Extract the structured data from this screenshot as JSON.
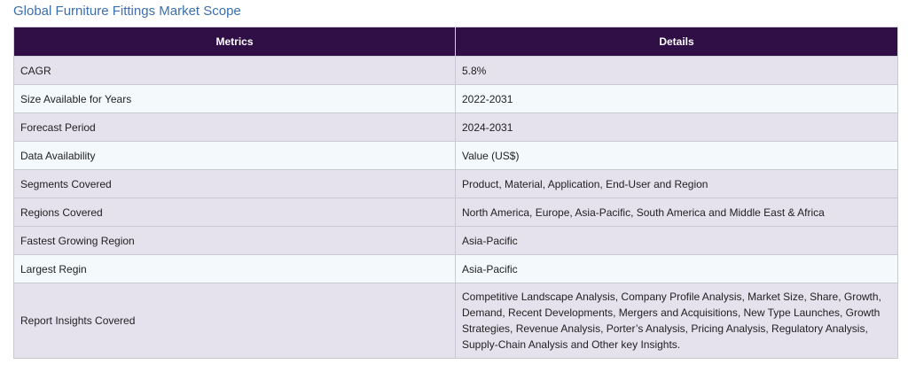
{
  "title": "Global Furniture Fittings Market Scope",
  "table": {
    "headers": [
      "Metrics",
      "Details"
    ],
    "rows": [
      {
        "metric": "CAGR",
        "detail": "5.8%"
      },
      {
        "metric": "Size Available for Years",
        "detail": "2022-2031"
      },
      {
        "metric": "Forecast Period",
        "detail": "2024-2031"
      },
      {
        "metric": "Data Availability",
        "detail": "Value (US$)"
      },
      {
        "metric": "Segments Covered",
        "detail": "Product, Material, Application, End-User and Region"
      },
      {
        "metric": "Regions Covered",
        "detail": "North America, Europe, Asia-Pacific, South America and Middle East & Africa"
      },
      {
        "metric": "Fastest Growing Region",
        "detail": "Asia-Pacific"
      },
      {
        "metric": "Largest Regin",
        "detail": "Asia-Pacific"
      },
      {
        "metric": "Report Insights Covered",
        "detail": "Competitive Landscape Analysis, Company Profile Analysis, Market Size, Share, Growth, Demand, Recent Developments, Mergers and Acquisitions, New Type Launches, Growth Strategies, Revenue Analysis, Porter’s Analysis, Pricing Analysis, Regulatory Analysis, Supply-Chain Analysis and Other key Insights."
      }
    ]
  }
}
